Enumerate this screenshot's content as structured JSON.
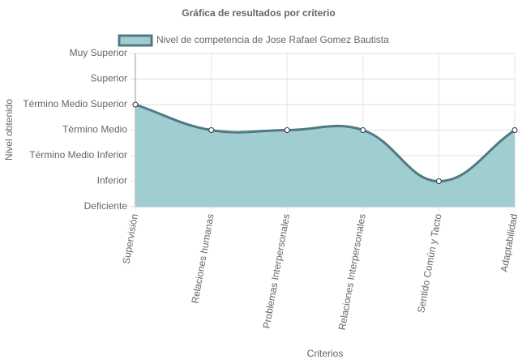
{
  "chart_data": {
    "type": "line",
    "title": "Gráfica de resultados por criterio",
    "x_label": "Criterios",
    "y_label": "Nivel obtenido",
    "categories": [
      "Supervisión",
      "Relaciones humanas",
      "Problemas Interpersonales",
      "Relaciones Interpersonales",
      "Sentido Común y Tacto",
      "Adaptabilidad"
    ],
    "series": [
      {
        "name": "Nivel de competencia de Jose Rafael Gomez Bautista",
        "color": "#4f7a85",
        "fill": "#a0cdd0",
        "values": [
          4,
          3,
          3,
          3,
          1,
          3
        ]
      }
    ],
    "ylim": [
      0,
      6
    ],
    "yticks": [
      {
        "value": 0,
        "label": "Deficiente"
      },
      {
        "value": 1,
        "label": "Inferior"
      },
      {
        "value": 2,
        "label": "Término Medio Inferior"
      },
      {
        "value": 3,
        "label": "Término Medio"
      },
      {
        "value": 4,
        "label": "Término Medio Superior"
      },
      {
        "value": 5,
        "label": "Superior"
      },
      {
        "value": 6,
        "label": "Muy Superior"
      }
    ],
    "grid": true,
    "legend": "top"
  }
}
